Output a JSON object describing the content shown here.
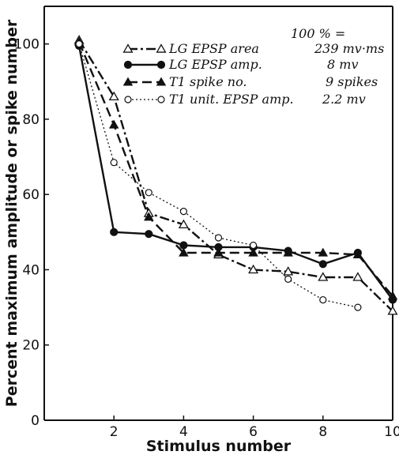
{
  "chart_data": {
    "type": "line",
    "title": "",
    "xlabel": "Stimulus number",
    "ylabel": "Percent maximum amplitude or spike number",
    "xlim": [
      0,
      10
    ],
    "ylim": [
      0,
      110
    ],
    "x_ticks": [
      2,
      4,
      6,
      8,
      10
    ],
    "y_ticks": [
      0,
      20,
      40,
      60,
      80,
      100
    ],
    "grid": false,
    "legend_position": "top-right",
    "legend_header": "100 % =",
    "series": [
      {
        "name": "LG EPSP area",
        "style": "dash-dot",
        "marker": "open-triangle",
        "value_note": "239 mv·ms",
        "x": [
          1,
          2,
          3,
          4,
          5,
          6,
          7,
          8,
          9,
          10
        ],
        "y": [
          101,
          86,
          55,
          52,
          44,
          40,
          39.5,
          38,
          38,
          29
        ]
      },
      {
        "name": "LG EPSP amp.",
        "style": "solid",
        "marker": "filled-circle",
        "value_note": "8 mv",
        "x": [
          1,
          2,
          3,
          4,
          5,
          6,
          7,
          8,
          9,
          10
        ],
        "y": [
          99.5,
          50,
          49.5,
          46.5,
          46,
          46,
          45,
          41.5,
          44.5,
          32
        ]
      },
      {
        "name": "T1 spike no.",
        "style": "dashed",
        "marker": "filled-triangle",
        "value_note": "9 spikes",
        "x": [
          1,
          2,
          3,
          4,
          5,
          6,
          7,
          8,
          9,
          10
        ],
        "y": [
          100.5,
          78.5,
          54,
          44.5,
          44.5,
          44.5,
          44.5,
          44.5,
          44,
          33
        ]
      },
      {
        "name": "T1 unit. EPSP amp.",
        "style": "dotted",
        "marker": "open-circle",
        "value_note": "2.2 mv",
        "x": [
          1,
          2,
          3,
          4,
          5,
          6,
          7,
          8,
          9
        ],
        "y": [
          100,
          68.5,
          60.5,
          55.5,
          48.5,
          46.5,
          37.5,
          32,
          30
        ]
      }
    ]
  }
}
